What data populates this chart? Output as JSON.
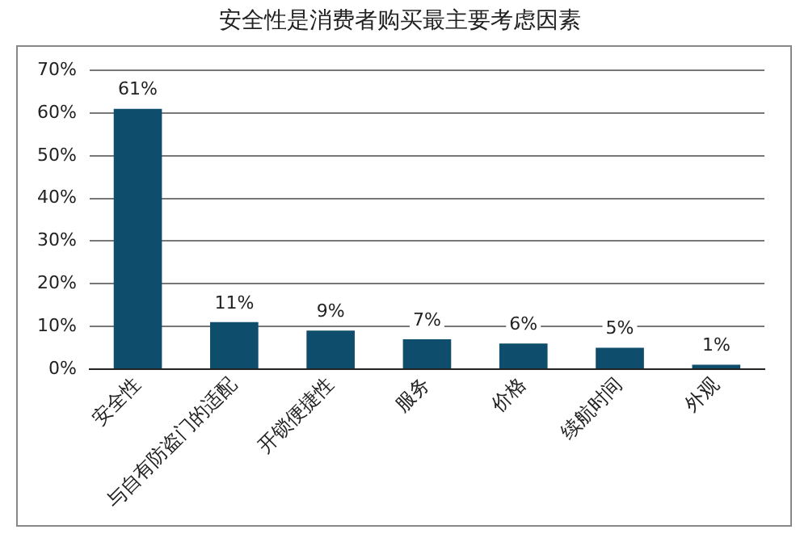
{
  "chart_data": {
    "type": "bar",
    "title": "安全性是消费者购买最主要考虑因素",
    "categories": [
      "安全性",
      "与自有防盗门的适配",
      "开锁便捷性",
      "服务",
      "价格",
      "续航时间",
      "外观"
    ],
    "values": [
      61,
      11,
      9,
      7,
      6,
      5,
      1
    ],
    "color": "#0e4d6b",
    "ylim": [
      0,
      70
    ],
    "yticks": [
      {
        "value": 0,
        "label": "0%"
      },
      {
        "value": 10,
        "label": "10%"
      },
      {
        "value": 20,
        "label": "20%"
      },
      {
        "value": 30,
        "label": "30%"
      },
      {
        "value": 40,
        "label": "40%"
      },
      {
        "value": 50,
        "label": "50%"
      },
      {
        "value": 60,
        "label": "60%"
      },
      {
        "value": 70,
        "label": "70%"
      }
    ],
    "value_labels": [
      "61%",
      "11%",
      "9%",
      "7%",
      "6%",
      "5%",
      "1%"
    ],
    "grid": "y",
    "legend": false
  }
}
